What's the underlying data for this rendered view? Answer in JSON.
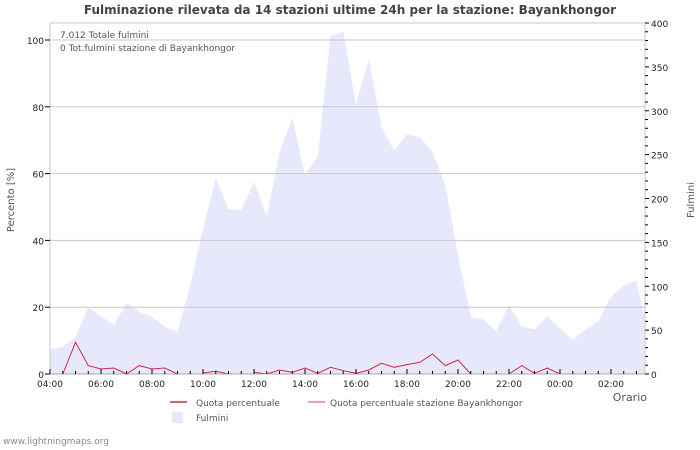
{
  "title": "Fulminazione rilevata da 14 stazioni ultime 24h per la stazione: Bayankhongor",
  "annotations": {
    "total": "7.012 Totale fulmini",
    "station_total": "0 Tot.fulmini stazione di Bayankhongor"
  },
  "axes": {
    "left_label": "Percento   [%]",
    "right_label": "Fulmini",
    "x_label": "Orario",
    "left_ticks": [
      "0",
      "20",
      "40",
      "60",
      "80",
      "100"
    ],
    "right_ticks": [
      "0",
      "50",
      "100",
      "150",
      "200",
      "250",
      "300",
      "350",
      "400"
    ],
    "x_ticks": [
      "04:00",
      "06:00",
      "08:00",
      "10:00",
      "12:00",
      "14:00",
      "16:00",
      "18:00",
      "20:00",
      "22:00",
      "00:00",
      "02:00"
    ]
  },
  "legend": {
    "quota": "Quota percentuale",
    "quota_station": "Quota percentuale stazione Bayankhongor",
    "fulmini": "Fulmini"
  },
  "colors": {
    "area": "#e8e8fc",
    "quota": "#d0284a",
    "quota_legend": "#d86070",
    "quota_station": "#f0a0a8",
    "grid": "#c8c8c8"
  },
  "credit": "www.lightningmaps.org",
  "chart_data": {
    "type": "area+line",
    "title": "Fulminazione rilevata da 14 stazioni ultime 24h per la stazione: Bayankhongor",
    "xlabel": "Orario",
    "ylabel_left": "Percento [%]",
    "ylabel_right": "Fulmini",
    "ylim_left": [
      0,
      100
    ],
    "ylim_right": [
      0,
      400
    ],
    "x": [
      "04:00",
      "04:30",
      "05:00",
      "05:30",
      "06:00",
      "06:30",
      "07:00",
      "07:30",
      "08:00",
      "08:30",
      "09:00",
      "09:30",
      "10:00",
      "10:30",
      "11:00",
      "11:30",
      "12:00",
      "12:30",
      "13:00",
      "13:30",
      "14:00",
      "14:30",
      "15:00",
      "15:30",
      "16:00",
      "16:30",
      "17:00",
      "17:30",
      "18:00",
      "18:30",
      "19:00",
      "19:30",
      "20:00",
      "20:30",
      "21:00",
      "21:30",
      "22:00",
      "22:30",
      "23:00",
      "23:30",
      "00:00",
      "00:30",
      "01:00",
      "01:30",
      "02:00",
      "02:30",
      "03:00",
      "03:30"
    ],
    "series": [
      {
        "name": "Fulmini",
        "axis": "right",
        "type": "area",
        "values": [
          28,
          31,
          42,
          76,
          66,
          56,
          81,
          71,
          65,
          54,
          48,
          101,
          166,
          223,
          187,
          187,
          219,
          180,
          253,
          292,
          227,
          248,
          385,
          390,
          307,
          359,
          281,
          255,
          273,
          270,
          253,
          215,
          136,
          65,
          62,
          49,
          79,
          54,
          51,
          66,
          52,
          39,
          51,
          60,
          88,
          101,
          107,
          62
        ]
      },
      {
        "name": "Quota percentuale",
        "axis": "left",
        "type": "line",
        "values": [
          null,
          0,
          9.5,
          2.5,
          1.5,
          1.8,
          0,
          2.5,
          1.5,
          1.8,
          0,
          null,
          0.3,
          0.8,
          0,
          null,
          0.5,
          0,
          1.2,
          0.5,
          1.8,
          0.2,
          2,
          1,
          0.2,
          1.2,
          3.2,
          2,
          2.8,
          3.5,
          6,
          2.5,
          4.2,
          0,
          null,
          null,
          0,
          2.5,
          0.2,
          1.8,
          0,
          null,
          null,
          null,
          null,
          null,
          null,
          null
        ]
      },
      {
        "name": "Quota percentuale stazione Bayankhongor",
        "axis": "left",
        "type": "line",
        "values": []
      }
    ],
    "annotations": [
      "7.012 Totale fulmini",
      "0 Tot.fulmini stazione di Bayankhongor"
    ],
    "legend_position": "bottom",
    "grid": true
  }
}
